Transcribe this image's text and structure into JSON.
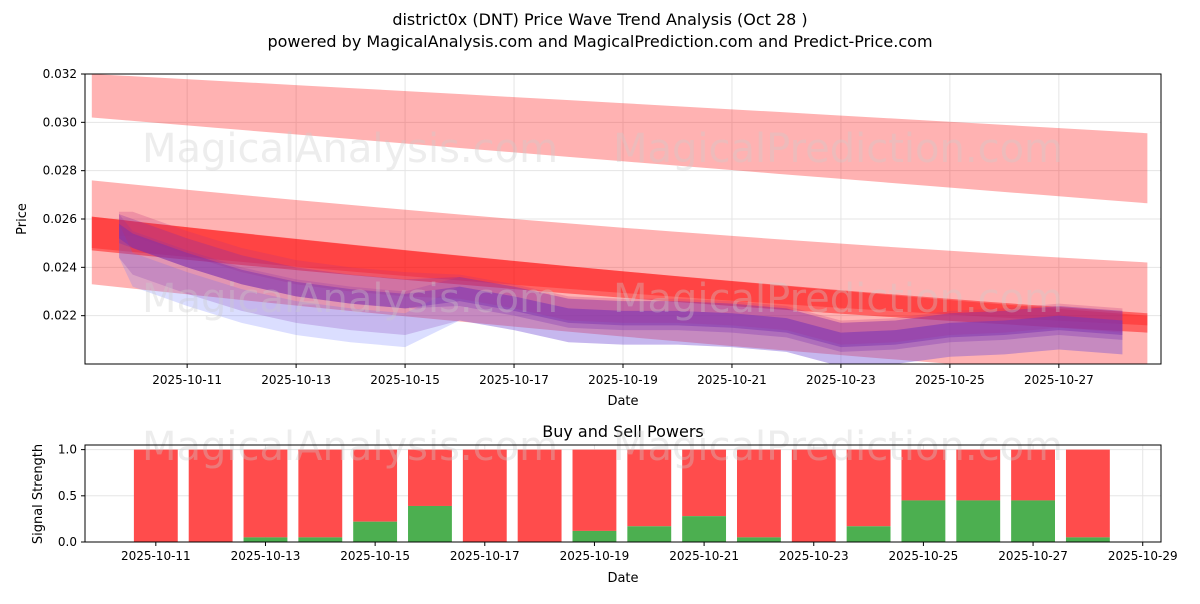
{
  "title": "district0x (DNT) Price Wave Trend Analysis (Oct 28 )",
  "subtitle": "powered by MagicalAnalysis.com and MagicalPrediction.com and Predict-Price.com",
  "watermarks": [
    "MagicalAnalysis.com",
    "MagicalPrediction.com"
  ],
  "colors": {
    "band": "#ff0000",
    "wave": "#7b2fb0",
    "wave_alt": "#6f7bff",
    "buy": "#4caf50",
    "sell": "#ff4c4c"
  },
  "chart_data": [
    {
      "type": "area",
      "title": "",
      "xlabel": "Date",
      "ylabel": "Price",
      "xlim": [
        "2025-10-09T03:00",
        "2025-10-28T21:00"
      ],
      "ylim": [
        0.02,
        0.032
      ],
      "xticks": [
        "2025-10-11",
        "2025-10-13",
        "2025-10-15",
        "2025-10-17",
        "2025-10-19",
        "2025-10-21",
        "2025-10-23",
        "2025-10-25",
        "2025-10-27"
      ],
      "yticks": [
        "0.022",
        "0.024",
        "0.026",
        "0.028",
        "0.030",
        "0.032"
      ],
      "trend_bands": [
        {
          "name": "upper band",
          "start": "2025-10-09T06:00",
          "end": "2025-10-28T15:00",
          "center": [
            0.0311,
            0.0296,
            0.0281
          ],
          "width": [
            0.0018,
            0.0024,
            0.0029
          ],
          "opacity": 0.3
        },
        {
          "name": "middle band",
          "start": "2025-10-09T06:00",
          "end": "2025-10-28T15:00",
          "center": [
            0.0262,
            0.0243,
            0.0229
          ],
          "width": [
            0.0028,
            0.0027,
            0.0026
          ],
          "opacity": 0.3
        },
        {
          "name": "lower band",
          "start": "2025-10-09T06:00",
          "end": "2025-10-28T15:00",
          "center": [
            0.0247,
            0.0225,
            0.0207
          ],
          "width": [
            0.0028,
            0.0027,
            0.0026
          ],
          "opacity": 0.3
        },
        {
          "name": "core trend",
          "start": "2025-10-09T06:00",
          "end": "2025-10-28T15:00",
          "center": [
            0.0254,
            0.0233,
            0.0217
          ],
          "width": [
            0.0014,
            0.0011,
            0.0008
          ],
          "opacity": 0.45
        }
      ],
      "wave": {
        "dates": [
          "2025-10-09T18:00",
          "2025-10-10",
          "2025-10-11",
          "2025-10-12",
          "2025-10-13",
          "2025-10-14",
          "2025-10-15",
          "2025-10-16",
          "2025-10-17",
          "2025-10-18",
          "2025-10-19",
          "2025-10-20",
          "2025-10-21",
          "2025-10-22",
          "2025-10-23",
          "2025-10-24",
          "2025-10-25",
          "2025-10-26",
          "2025-10-27",
          "2025-10-28T04:00"
        ],
        "price": [
          0.0255,
          0.0251,
          0.0243,
          0.0236,
          0.0231,
          0.0228,
          0.0226,
          0.0229,
          0.0225,
          0.022,
          0.0219,
          0.0219,
          0.0218,
          0.0216,
          0.021,
          0.0211,
          0.0214,
          0.0215,
          0.0217,
          0.0215
        ]
      }
    },
    {
      "type": "bar",
      "title": "Buy and Sell Powers",
      "xlabel": "Date",
      "ylabel": "Signal Strength",
      "xlim": [
        "2025-10-09T17:00",
        "2025-10-29T08:00"
      ],
      "ylim": [
        0,
        1.05
      ],
      "xticks": [
        "2025-10-11",
        "2025-10-13",
        "2025-10-15",
        "2025-10-17",
        "2025-10-19",
        "2025-10-21",
        "2025-10-23",
        "2025-10-25",
        "2025-10-27",
        "2025-10-29"
      ],
      "yticks": [
        "0.0",
        "0.5",
        "1.0"
      ],
      "categories": [
        "2025-10-11",
        "2025-10-12",
        "2025-10-13",
        "2025-10-14",
        "2025-10-15",
        "2025-10-16",
        "2025-10-17",
        "2025-10-18",
        "2025-10-19",
        "2025-10-20",
        "2025-10-21",
        "2025-10-22",
        "2025-10-23",
        "2025-10-24",
        "2025-10-25",
        "2025-10-26",
        "2025-10-27",
        "2025-10-28"
      ],
      "series": [
        {
          "name": "Buy",
          "values": [
            0,
            0,
            0.05,
            0.05,
            0.22,
            0.39,
            0,
            0,
            0.12,
            0.17,
            0.28,
            0.05,
            0,
            0.17,
            0.45,
            0.45,
            0.45,
            0.05
          ]
        },
        {
          "name": "Sell",
          "values": [
            1,
            1,
            0.95,
            0.95,
            0.78,
            0.61,
            1,
            1,
            0.88,
            0.83,
            0.72,
            0.95,
            1,
            0.83,
            0.55,
            0.55,
            0.55,
            0.95
          ]
        }
      ]
    }
  ]
}
